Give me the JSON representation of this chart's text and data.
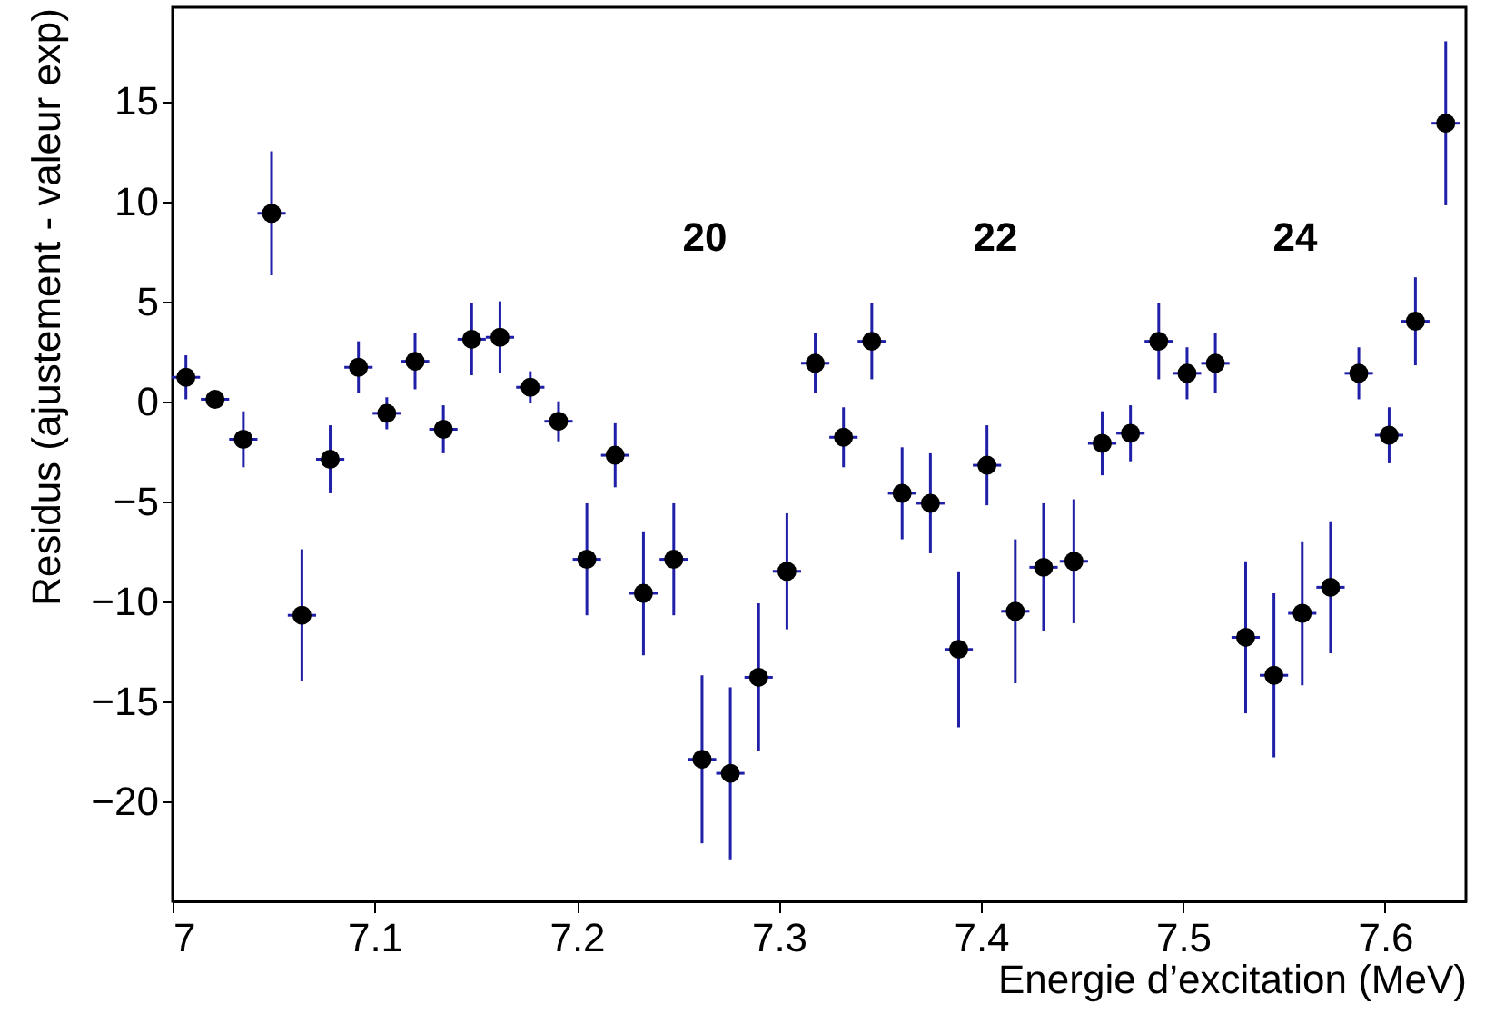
{
  "chart_data": {
    "type": "scatter",
    "xlabel": "Energie d’excitation (MeV)",
    "ylabel": "Residus (ajustement - valeur exp)",
    "x": [
      7.0066,
      7.021,
      7.035,
      7.049,
      7.064,
      7.078,
      7.092,
      7.106,
      7.12,
      7.134,
      7.148,
      7.162,
      7.177,
      7.191,
      7.205,
      7.219,
      7.233,
      7.248,
      7.262,
      7.276,
      7.29,
      7.304,
      7.318,
      7.332,
      7.346,
      7.361,
      7.375,
      7.389,
      7.403,
      7.417,
      7.431,
      7.446,
      7.46,
      7.474,
      7.488,
      7.502,
      7.516,
      7.531,
      7.545,
      7.559,
      7.573,
      7.587,
      7.602,
      7.615,
      7.63
    ],
    "series": [
      {
        "color": "#000000",
        "values": [
          1.2,
          0.1,
          -1.9,
          9.4,
          -10.7,
          -2.9,
          1.7,
          -0.6,
          2.0,
          -1.4,
          3.1,
          3.2,
          0.7,
          -1.0,
          -7.9,
          -2.7,
          -9.6,
          -7.9,
          -17.9,
          -18.6,
          -13.8,
          -8.5,
          1.9,
          -1.8,
          3.0,
          -4.6,
          -5.1,
          -12.4,
          -3.2,
          -10.5,
          -8.3,
          -8.0,
          -2.1,
          -1.6,
          3.0,
          1.4,
          1.9,
          -11.8,
          -13.7,
          -10.6,
          -9.3,
          1.4,
          -1.7,
          4.0,
          13.9
        ],
        "errors": [
          1.1,
          null,
          1.4,
          3.1,
          3.3,
          1.7,
          1.3,
          0.8,
          1.4,
          1.2,
          1.8,
          1.8,
          0.8,
          1.0,
          2.8,
          1.6,
          3.1,
          2.8,
          4.2,
          4.3,
          3.7,
          2.9,
          1.5,
          1.5,
          1.9,
          2.3,
          2.5,
          3.9,
          2.0,
          3.6,
          3.2,
          3.1,
          1.6,
          1.4,
          1.9,
          1.3,
          1.5,
          3.8,
          4.1,
          3.6,
          3.3,
          1.3,
          1.4,
          2.2,
          4.1
        ],
        "xerrors": [
          0.007,
          0.007,
          0.007,
          0.007,
          0.007,
          0.007,
          0.007,
          0.007,
          0.007,
          0.007,
          0.007,
          0.007,
          0.007,
          0.007,
          0.007,
          0.007,
          0.007,
          0.007,
          0.007,
          0.007,
          0.007,
          0.007,
          0.007,
          0.007,
          0.007,
          0.007,
          0.007,
          0.007,
          0.007,
          0.007,
          0.007,
          0.007,
          0.007,
          0.007,
          0.007,
          0.007,
          0.007,
          0.007,
          0.007,
          0.007,
          0.007,
          0.007,
          0.007,
          0.007,
          0.007
        ]
      }
    ],
    "annotations": [
      "20",
      "22",
      "24"
    ],
    "marker": "circle",
    "xlim": [
      7,
      7.64
    ],
    "xticks": [
      7,
      7.1,
      7.2,
      7.3,
      7.4,
      7.5,
      7.6
    ],
    "ylim": [
      -25,
      19.7
    ],
    "yticks": [
      -20,
      -15,
      -10,
      -5,
      0,
      5,
      10,
      15
    ]
  }
}
